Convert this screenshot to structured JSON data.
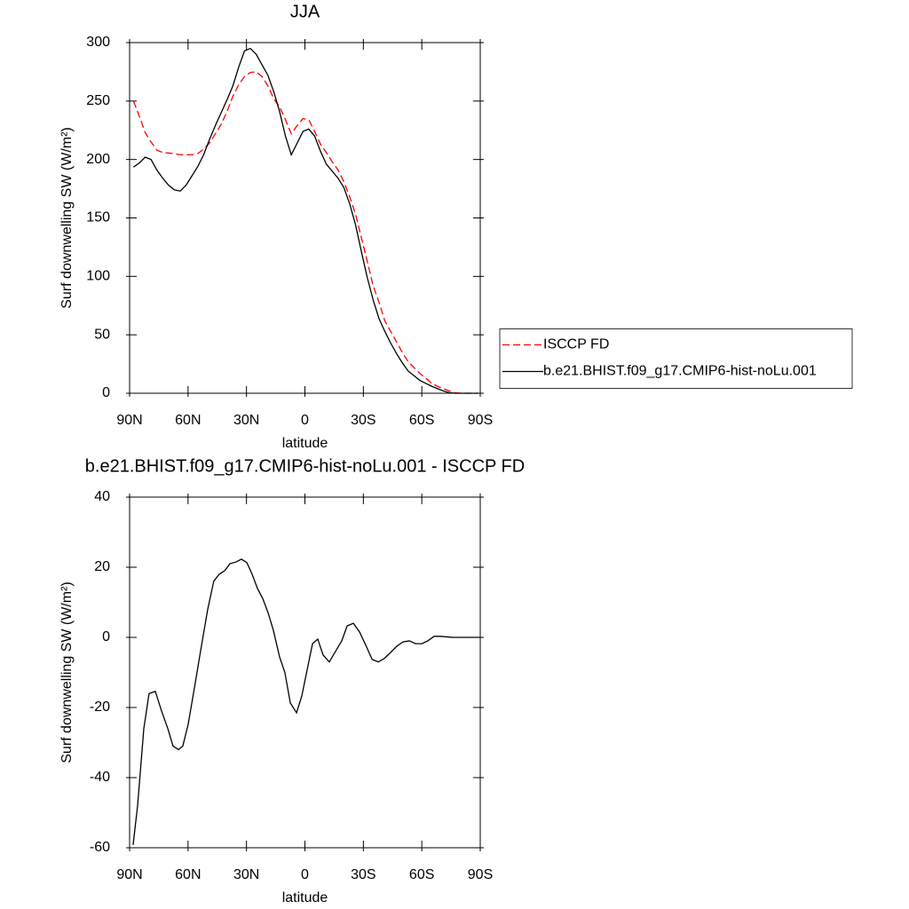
{
  "chart_data": [
    {
      "type": "line",
      "title": "JJA",
      "x_label": "latitude",
      "y_label": "Surf downwelling SW (W/m²)",
      "x": [
        88,
        85,
        82,
        79,
        76,
        73,
        70,
        67,
        64,
        61,
        58,
        55,
        52,
        49,
        46,
        43,
        40,
        37,
        34,
        31,
        28,
        25,
        22,
        19,
        16,
        13,
        10,
        7,
        4,
        1,
        -2,
        -5,
        -8,
        -11,
        -14,
        -17,
        -20,
        -23,
        -26,
        -29,
        -32,
        -35,
        -38,
        -41,
        -44,
        -47,
        -50,
        -53,
        -56,
        -59,
        -62,
        -65,
        -68,
        -71,
        -74,
        -77,
        -80,
        -83,
        -86,
        -89
      ],
      "series": [
        {
          "name": "ISCCP FD",
          "color": "#ff0000",
          "dashed": true,
          "values": [
            250,
            237,
            223,
            215,
            208,
            206,
            205.5,
            205,
            204,
            204,
            204,
            205,
            209,
            214,
            222,
            230,
            241,
            254,
            264,
            271,
            274.5,
            275,
            271,
            263,
            252,
            245,
            234,
            222,
            229,
            235,
            234,
            224,
            213,
            206,
            198,
            191,
            181,
            168,
            153,
            133,
            113,
            92,
            78,
            62,
            53,
            44,
            35,
            27,
            22,
            17,
            13,
            8.5,
            6,
            4,
            2,
            0.5,
            0,
            0,
            0,
            0
          ]
        },
        {
          "name": "b.e21.BHIST.f09_g17.CMIP6-hist-noLu.001",
          "color": "#000000",
          "dashed": false,
          "values": [
            193.5,
            197,
            202,
            200,
            191,
            184,
            178,
            174,
            173,
            178,
            186,
            194,
            204,
            217,
            229,
            240,
            251,
            263,
            279,
            293,
            295,
            290,
            281,
            272,
            258,
            241,
            220,
            204,
            214,
            224,
            226,
            220,
            207,
            196,
            190,
            184,
            176,
            162,
            144,
            121,
            99,
            80,
            64,
            53,
            43,
            34,
            26,
            19,
            15,
            11,
            8.5,
            6,
            4,
            2,
            0.5,
            0,
            0,
            0,
            0,
            0
          ]
        }
      ],
      "xlim": [
        90,
        -90
      ],
      "xticks": [
        {
          "value": 90,
          "label": "90N"
        },
        {
          "value": 60,
          "label": "60N"
        },
        {
          "value": 30,
          "label": "30N"
        },
        0,
        {
          "value": -30,
          "label": "30S"
        },
        {
          "value": -60,
          "label": "60S"
        },
        {
          "value": -90,
          "label": "90S"
        }
      ],
      "ylim": [
        0,
        300
      ],
      "yticks": [
        0,
        50,
        100,
        150,
        200,
        250,
        300
      ],
      "legend": "right"
    },
    {
      "type": "line",
      "title": "b.e21.BHIST.f09_g17.CMIP6-hist-noLu.001 - ISCCP FD",
      "x_label": "latitude",
      "y_label": "Surf downwelling SW (W/m²)",
      "x": [
        88.2,
        85.9,
        82.7,
        80.0,
        76.8,
        73.6,
        70.4,
        67.7,
        64.9,
        62.7,
        60.0,
        56.3,
        53.6,
        49.9,
        46.8,
        44.0,
        41.2,
        38.5,
        35.3,
        32.6,
        29.8,
        27.1,
        24.4,
        21.6,
        18.9,
        16.2,
        13.0,
        10.3,
        7.5,
        4.3,
        1.6,
        -1.6,
        -3.9,
        -6.6,
        -9.3,
        -12.5,
        -15.7,
        -18.9,
        -21.7,
        -24.9,
        -28.1,
        -31.3,
        -34.5,
        -37.7,
        -40.8,
        -44.0,
        -47.2,
        -50.4,
        -53.6,
        -56.8,
        -60.0,
        -63.1,
        -66.3,
        -69.5,
        -75.9,
        -89.5
      ],
      "series": [
        {
          "color": "#000000",
          "dashed": false,
          "values": [
            -59.2,
            -48,
            -26,
            -16,
            -15.4,
            -21,
            -26,
            -31,
            -32,
            -31,
            -25,
            -13,
            -4,
            8,
            16,
            18,
            19,
            21,
            21.5,
            22.3,
            21.3,
            18,
            14,
            11,
            7,
            2,
            -5.6,
            -10,
            -18.7,
            -21.5,
            -16.7,
            -8,
            -1.8,
            -0.5,
            -5,
            -7,
            -4,
            -1,
            3.3,
            4,
            1.5,
            -2.3,
            -6.3,
            -7,
            -6,
            -4.3,
            -2.5,
            -1.3,
            -1,
            -1.8,
            -1.8,
            -1,
            0.3,
            0.3,
            0,
            0
          ]
        }
      ],
      "xlim": [
        90,
        -90
      ],
      "xticks": [
        {
          "value": 90,
          "label": "90N"
        },
        {
          "value": 60,
          "label": "60N"
        },
        {
          "value": 30,
          "label": "30N"
        },
        0,
        {
          "value": -30,
          "label": "30S"
        },
        {
          "value": -60,
          "label": "60S"
        },
        {
          "value": -90,
          "label": "90S"
        }
      ],
      "ylim": [
        -60,
        40
      ],
      "yticks": [
        -60,
        -40,
        -20,
        0,
        20,
        40
      ]
    }
  ]
}
